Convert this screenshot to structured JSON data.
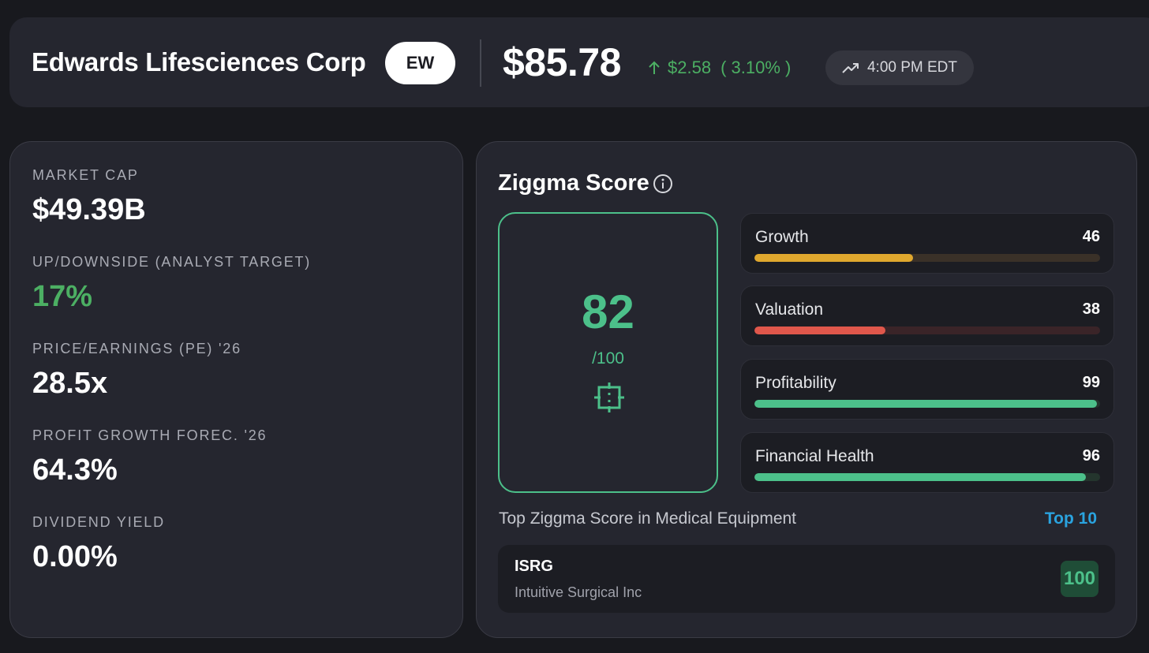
{
  "header": {
    "company_name": "Edwards Lifesciences Corp",
    "ticker": "EW",
    "price": "$85.78",
    "change_amount": "$2.58",
    "change_percent": "( 3.10% )",
    "time": "4:00 PM EDT",
    "change_color": "#4caf63"
  },
  "metrics": [
    {
      "label": "MARKET CAP",
      "value": "$49.39B"
    },
    {
      "label": "UP/DOWNSIDE (ANALYST TARGET)",
      "value": "17%"
    },
    {
      "label": "PRICE/EARNINGS (PE) '26",
      "value": "28.5x"
    },
    {
      "label": "PROFIT GROWTH FOREC. '26",
      "value": "64.3%"
    },
    {
      "label": "DIVIDEND YIELD",
      "value": "0.00%"
    }
  ],
  "ziggma": {
    "title": "Ziggma Score",
    "score": "82",
    "out_of": "/100",
    "accent_color": "#4cc08a",
    "factors": [
      {
        "label": "Growth",
        "value": "46",
        "fill": 0.46,
        "color": "#e0a82e",
        "track": "#3a3128"
      },
      {
        "label": "Valuation",
        "value": "38",
        "fill": 0.38,
        "color": "#e0574b",
        "track": "#3a2428"
      },
      {
        "label": "Profitability",
        "value": "99",
        "fill": 0.99,
        "color": "#4cc08a",
        "track": "#24352d"
      },
      {
        "label": "Financial Health",
        "value": "96",
        "fill": 0.96,
        "color": "#4cc08a",
        "track": "#24352d"
      }
    ],
    "sector_text": "Top Ziggma Score in Medical Equipment",
    "top_link": "Top 10",
    "peer": {
      "ticker": "ISRG",
      "name": "Intuitive Surgical Inc",
      "score": "100"
    }
  }
}
